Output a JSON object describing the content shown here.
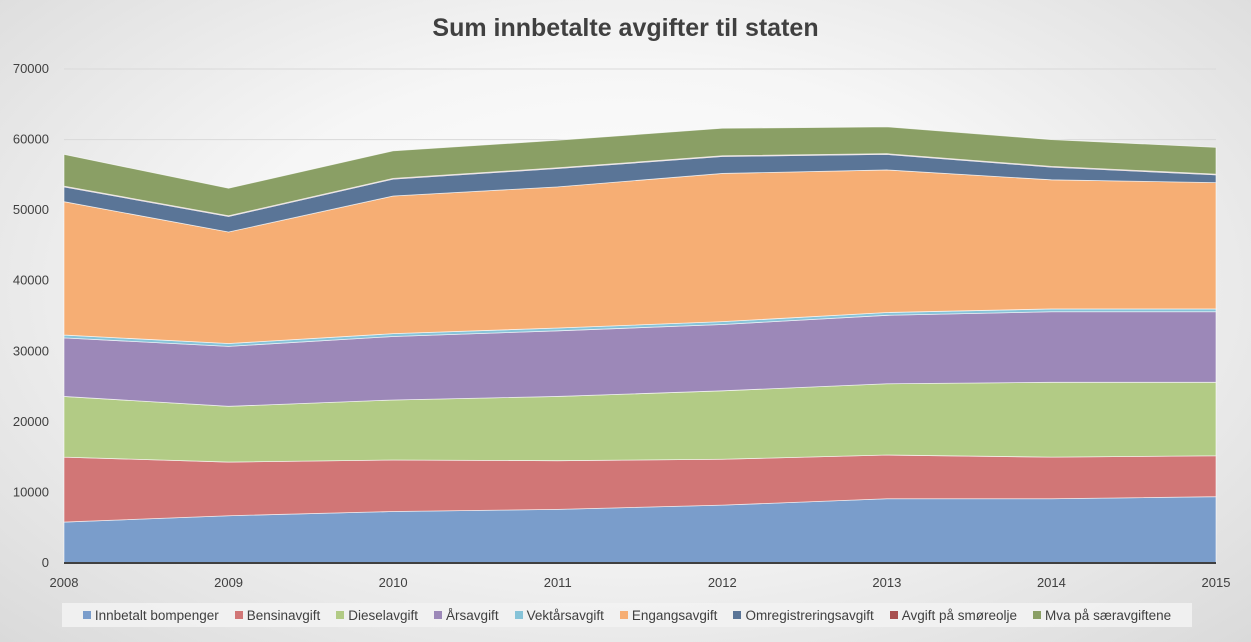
{
  "chart_data": {
    "type": "area",
    "stacked": true,
    "title": "Sum innbetalte avgifter til staten",
    "x": [
      "2008",
      "2009",
      "2010",
      "2011",
      "2012",
      "2013",
      "2014",
      "2015"
    ],
    "ylim": [
      0,
      70000
    ],
    "yticks": [
      "0",
      "10000",
      "20000",
      "30000",
      "40000",
      "50000",
      "60000",
      "70000"
    ],
    "grid": true,
    "legend_position": "bottom",
    "series": [
      {
        "name": "Innbetalt bompenger",
        "color": "#7a9dcb",
        "values": [
          5800,
          6700,
          7300,
          7600,
          8200,
          9100,
          9100,
          9400
        ]
      },
      {
        "name": "Bensinavgift",
        "color": "#d17676",
        "values": [
          9200,
          7600,
          7300,
          6900,
          6500,
          6200,
          5900,
          5800
        ]
      },
      {
        "name": "Dieselavgift",
        "color": "#b2cb85",
        "values": [
          8600,
          7900,
          8500,
          9100,
          9700,
          10100,
          10600,
          10400
        ]
      },
      {
        "name": "Årsavgift",
        "color": "#9c88b8",
        "values": [
          8300,
          8500,
          9000,
          9300,
          9400,
          9700,
          10000,
          10000
        ]
      },
      {
        "name": "Vektårsavgift",
        "color": "#86c3d8",
        "values": [
          400,
          400,
          400,
          400,
          400,
          400,
          400,
          400
        ]
      },
      {
        "name": "Engangsavgift",
        "color": "#f6ae74",
        "values": [
          18900,
          15800,
          19500,
          20000,
          21000,
          20200,
          18300,
          17900
        ]
      },
      {
        "name": "Omregistreringsavgift",
        "color": "#5a7597",
        "values": [
          2100,
          2200,
          2400,
          2600,
          2400,
          2200,
          1800,
          1100
        ]
      },
      {
        "name": "Avgift på smøreolje",
        "color": "#a84f4f",
        "values": [
          100,
          100,
          100,
          100,
          100,
          100,
          100,
          100
        ]
      },
      {
        "name": "Mva på særavgiftene",
        "color": "#8a9f65",
        "values": [
          4500,
          3900,
          3900,
          3900,
          3900,
          3800,
          3800,
          3800
        ]
      }
    ]
  }
}
